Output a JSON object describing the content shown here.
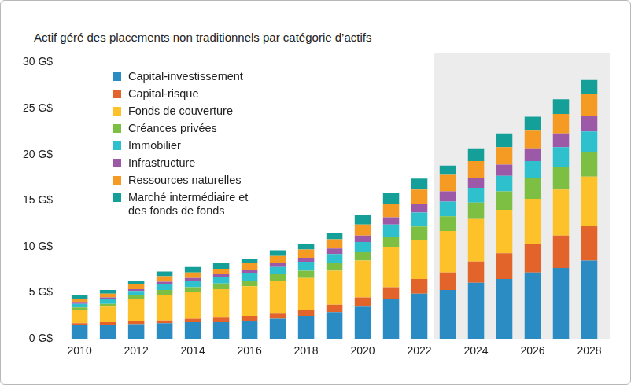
{
  "chart_data": {
    "type": "bar",
    "title": "Actif géré des placements non traditionnels par catégorie d’actifs",
    "categories": [
      "2010",
      null,
      "2012",
      null,
      "2014",
      null,
      "2016",
      null,
      "2018",
      null,
      "2020",
      null,
      "2022",
      null,
      "2024",
      null,
      "2026",
      null,
      "2028"
    ],
    "series": [
      {
        "name": "Capital-investissement",
        "color": "#2b8cc4",
        "values": [
          1.5,
          1.5,
          1.6,
          1.7,
          1.8,
          1.8,
          1.9,
          2.2,
          2.5,
          2.9,
          3.5,
          4.3,
          4.9,
          5.3,
          6.1,
          6.5,
          7.2,
          7.7,
          8.5
        ]
      },
      {
        "name": "Capital-risque",
        "color": "#e2642a",
        "values": [
          0.2,
          0.3,
          0.3,
          0.3,
          0.4,
          0.5,
          0.6,
          0.6,
          0.6,
          0.8,
          1.0,
          1.3,
          1.6,
          1.9,
          2.3,
          2.8,
          3.1,
          3.5,
          3.8
        ]
      },
      {
        "name": "Fonds de couverture",
        "color": "#fdc12a",
        "values": [
          1.4,
          1.7,
          2.4,
          2.8,
          2.9,
          3.1,
          3.2,
          3.5,
          3.5,
          3.7,
          4.0,
          4.4,
          4.2,
          4.5,
          4.6,
          4.7,
          4.9,
          5.0,
          5.3
        ]
      },
      {
        "name": "Créances privées",
        "color": "#7dbf42",
        "values": [
          0.3,
          0.3,
          0.4,
          0.5,
          0.5,
          0.6,
          0.6,
          0.7,
          0.8,
          0.8,
          0.9,
          1.1,
          1.5,
          1.6,
          1.8,
          2.0,
          2.3,
          2.5,
          2.7
        ]
      },
      {
        "name": "Immobilier",
        "color": "#2ec0cc",
        "values": [
          0.4,
          0.5,
          0.5,
          0.6,
          0.7,
          0.7,
          0.8,
          0.8,
          0.9,
          1.0,
          1.1,
          1.3,
          1.5,
          1.6,
          1.6,
          1.7,
          1.8,
          2.1,
          2.2
        ]
      },
      {
        "name": "Infrastructure",
        "color": "#9b59a8",
        "values": [
          0.2,
          0.2,
          0.2,
          0.3,
          0.3,
          0.3,
          0.4,
          0.4,
          0.5,
          0.6,
          0.7,
          0.8,
          0.9,
          1.1,
          1.1,
          1.2,
          1.3,
          1.5,
          1.7
        ]
      },
      {
        "name": "Ressources naturelles",
        "color": "#f59a23",
        "values": [
          0.3,
          0.4,
          0.5,
          0.6,
          0.6,
          0.6,
          0.7,
          0.8,
          0.9,
          1.0,
          1.2,
          1.4,
          1.6,
          1.8,
          1.8,
          1.9,
          2.0,
          2.1,
          2.4
        ]
      },
      {
        "name": "Marché intermédiaire et des fonds de fonds",
        "color": "#14a098",
        "values": [
          0.4,
          0.4,
          0.4,
          0.5,
          0.6,
          0.6,
          0.5,
          0.6,
          0.6,
          0.7,
          1.0,
          1.2,
          1.2,
          1.0,
          1.3,
          1.5,
          1.5,
          1.6,
          1.5
        ]
      }
    ],
    "shaded_from_index": 13,
    "stacked": true,
    "legend": "upper left",
    "grid": false,
    "ylim": [
      0,
      30
    ],
    "yticks": [
      {
        "value": 0,
        "label": "0 G$"
      },
      {
        "value": 5,
        "label": "5 G$"
      },
      {
        "value": 10,
        "label": "10 G$"
      },
      {
        "value": 15,
        "label": "15 G$"
      },
      {
        "value": 20,
        "label": "20 G$"
      },
      {
        "value": 25,
        "label": "25 G$"
      },
      {
        "value": 30,
        "label": "30 G$"
      }
    ]
  }
}
